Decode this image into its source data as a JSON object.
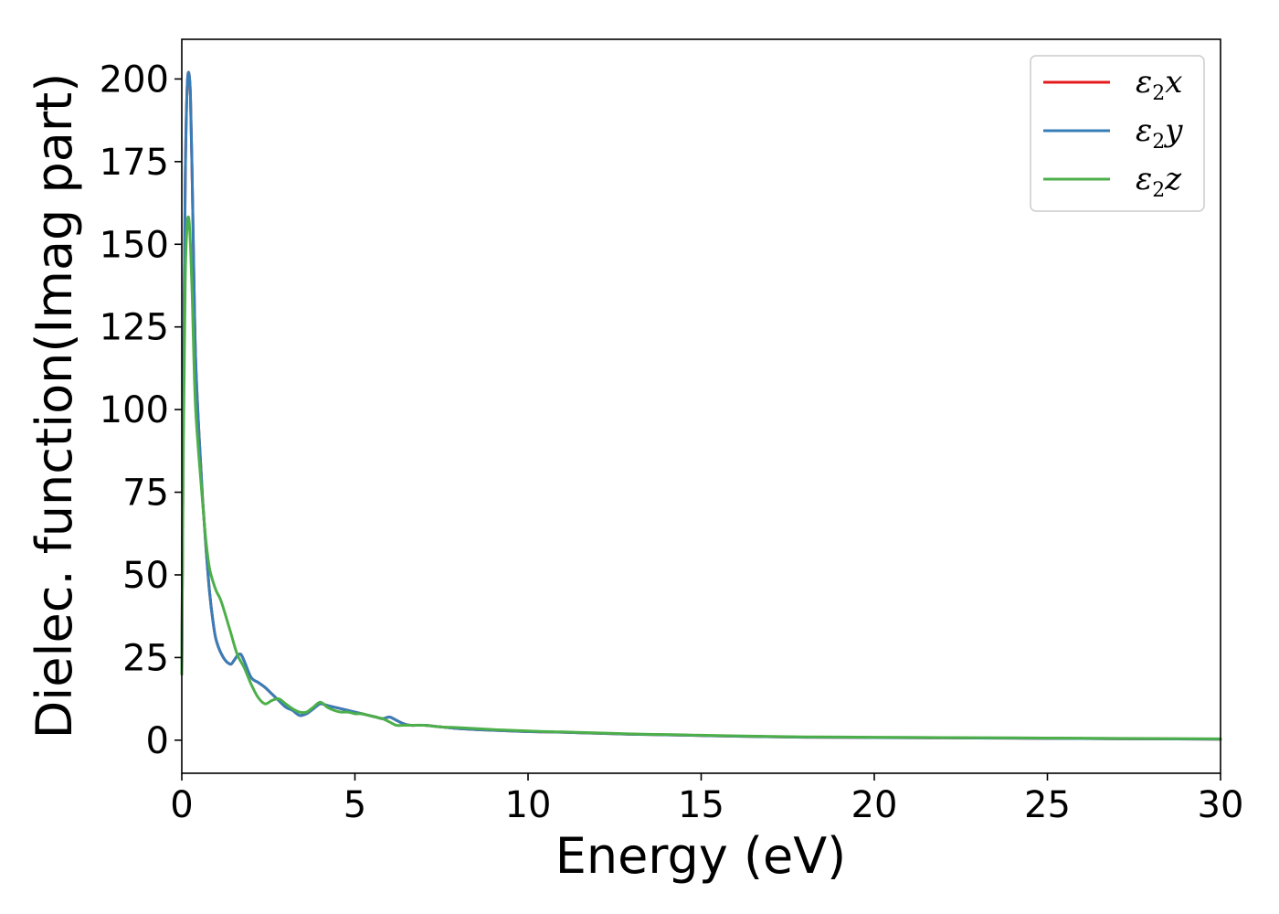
{
  "chart_data": {
    "type": "line",
    "title": "",
    "xlabel": "Energy (eV)",
    "ylabel": "Dielec. function(Imag part)",
    "xlim": [
      0,
      30
    ],
    "ylim": [
      -10,
      212
    ],
    "xticks": [
      0,
      5,
      10,
      15,
      20,
      25,
      30
    ],
    "yticks": [
      0,
      25,
      50,
      75,
      100,
      125,
      150,
      175,
      200
    ],
    "grid": false,
    "legend_position": "top-right",
    "series": [
      {
        "name": "ε2x",
        "label_base": "ε",
        "label_sub": "2",
        "label_axis": "x",
        "color": "#e41a1c",
        "x": [
          0,
          0.05,
          0.1,
          0.15,
          0.2,
          0.25,
          0.3,
          0.35,
          0.4,
          0.5,
          0.6,
          0.7,
          0.8,
          0.9,
          1.0,
          1.2,
          1.4,
          1.5,
          1.6,
          1.7,
          1.8,
          2.0,
          2.2,
          2.4,
          2.6,
          2.8,
          3.0,
          3.2,
          3.4,
          3.6,
          3.8,
          4.0,
          4.2,
          4.4,
          4.6,
          4.8,
          5.0,
          5.2,
          5.4,
          5.6,
          5.8,
          6.0,
          6.2,
          6.4,
          6.6,
          7.0,
          7.5,
          8.0,
          8.5,
          9.0,
          9.5,
          10,
          10.5,
          11,
          12,
          13,
          14,
          15,
          16,
          18,
          20,
          22,
          24,
          26,
          28,
          30
        ],
        "values": [
          20,
          110,
          170,
          196,
          202,
          195,
          170,
          140,
          115,
          92,
          73,
          58,
          45,
          36,
          30,
          25,
          23,
          24,
          25.5,
          26,
          24,
          19,
          17.5,
          16,
          14,
          12,
          10,
          9,
          7.5,
          8,
          9.5,
          11,
          10.5,
          10,
          9.5,
          9,
          8.5,
          8,
          7.5,
          7,
          6.5,
          7,
          6,
          5,
          4.5,
          4.5,
          4,
          3.5,
          3.2,
          3,
          2.8,
          2.6,
          2.5,
          2.4,
          2.1,
          1.8,
          1.6,
          1.4,
          1.2,
          0.9,
          0.8,
          0.7,
          0.6,
          0.5,
          0.4,
          0.3
        ]
      },
      {
        "name": "ε2y",
        "label_base": "ε",
        "label_sub": "2",
        "label_axis": "y",
        "color": "#377eb8",
        "x": [
          0,
          0.05,
          0.1,
          0.15,
          0.2,
          0.25,
          0.3,
          0.35,
          0.4,
          0.5,
          0.6,
          0.7,
          0.8,
          0.9,
          1.0,
          1.2,
          1.4,
          1.5,
          1.6,
          1.7,
          1.8,
          2.0,
          2.2,
          2.4,
          2.6,
          2.8,
          3.0,
          3.2,
          3.4,
          3.6,
          3.8,
          4.0,
          4.2,
          4.4,
          4.6,
          4.8,
          5.0,
          5.2,
          5.4,
          5.6,
          5.8,
          6.0,
          6.2,
          6.4,
          6.6,
          7.0,
          7.5,
          8.0,
          8.5,
          9.0,
          9.5,
          10,
          10.5,
          11,
          12,
          13,
          14,
          15,
          16,
          18,
          20,
          22,
          24,
          26,
          28,
          30
        ],
        "values": [
          20,
          110,
          170,
          196,
          202,
          195,
          170,
          140,
          115,
          92,
          73,
          58,
          45,
          36,
          30,
          25,
          23,
          24,
          25.5,
          26,
          24,
          19,
          17.5,
          16,
          14,
          12,
          10,
          9,
          7.5,
          8,
          9.5,
          11,
          10.5,
          10,
          9.5,
          9,
          8.5,
          8,
          7.5,
          7,
          6.5,
          7,
          6,
          5,
          4.5,
          4.5,
          4,
          3.5,
          3.2,
          3,
          2.8,
          2.6,
          2.5,
          2.4,
          2.1,
          1.8,
          1.6,
          1.4,
          1.2,
          0.9,
          0.8,
          0.7,
          0.6,
          0.5,
          0.4,
          0.3
        ]
      },
      {
        "name": "ε2z",
        "label_base": "ε",
        "label_sub": "2",
        "label_axis": "z",
        "color": "#4daf4a",
        "x": [
          0,
          0.05,
          0.1,
          0.15,
          0.2,
          0.25,
          0.3,
          0.35,
          0.4,
          0.5,
          0.6,
          0.7,
          0.8,
          0.9,
          1.0,
          1.1,
          1.2,
          1.4,
          1.6,
          1.8,
          2.0,
          2.2,
          2.4,
          2.6,
          2.8,
          3.0,
          3.2,
          3.4,
          3.6,
          3.8,
          4.0,
          4.2,
          4.4,
          4.6,
          4.8,
          5.0,
          5.2,
          5.4,
          5.6,
          5.8,
          6.0,
          6.2,
          6.4,
          6.6,
          7.0,
          7.5,
          8.0,
          8.5,
          9.0,
          9.5,
          10,
          10.5,
          11,
          12,
          13,
          14,
          15,
          16,
          18,
          20,
          22,
          24,
          26,
          28,
          30
        ],
        "values": [
          20,
          95,
          140,
          155,
          158,
          150,
          135,
          115,
          100,
          85,
          72,
          60,
          52,
          48,
          45,
          43,
          40,
          33,
          26,
          22,
          17,
          13,
          11,
          12,
          12.5,
          11,
          9.5,
          8.5,
          8.5,
          10,
          11.5,
          10,
          9,
          8.5,
          8.5,
          8,
          8,
          7.5,
          7,
          6.5,
          5.5,
          4.5,
          4.5,
          4.5,
          4.5,
          4,
          3.8,
          3.5,
          3.2,
          3,
          2.8,
          2.6,
          2.5,
          2.2,
          1.9,
          1.7,
          1.5,
          1.3,
          1,
          0.9,
          0.8,
          0.7,
          0.6,
          0.5,
          0.4
        ]
      }
    ]
  }
}
